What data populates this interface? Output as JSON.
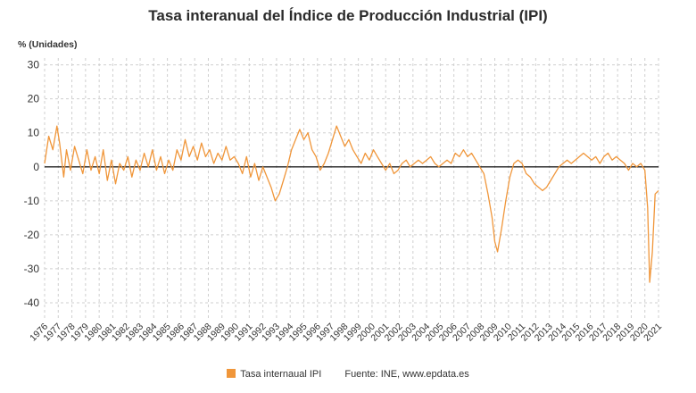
{
  "chart_data": {
    "type": "line",
    "title": "Tasa interanual del Índice de Producción Industrial (IPI)",
    "unit_label": "% (Unidades)",
    "source": "Fuente: INE, www.epdata.es",
    "x_ticks": [
      "1976",
      "1977",
      "1978",
      "1979",
      "1980",
      "1981",
      "1982",
      "1983",
      "1984",
      "1985",
      "1986",
      "1987",
      "1988",
      "1989",
      "1990",
      "1991",
      "1992",
      "1993",
      "1994",
      "1995",
      "1996",
      "1997",
      "1998",
      "1999",
      "2000",
      "2001",
      "2002",
      "2003",
      "2004",
      "2005",
      "2006",
      "2007",
      "2008",
      "2009",
      "2010",
      "2011",
      "2012",
      "2013",
      "2014",
      "2015",
      "2016",
      "2017",
      "2018",
      "2019",
      "2020",
      "2021"
    ],
    "y_ticks": [
      30,
      20,
      10,
      0,
      -10,
      -20,
      -30,
      -40
    ],
    "xlim": [
      1976,
      2021
    ],
    "ylim": [
      -45,
      32
    ],
    "grid": true,
    "legend_position": "bottom",
    "series": [
      {
        "name": "Tasa internaual IPI",
        "color": "#f0963a",
        "points": [
          [
            1976.0,
            1
          ],
          [
            1976.3,
            9
          ],
          [
            1976.6,
            5
          ],
          [
            1976.9,
            12
          ],
          [
            1977.1,
            7
          ],
          [
            1977.4,
            -3
          ],
          [
            1977.6,
            5
          ],
          [
            1977.9,
            -1
          ],
          [
            1978.2,
            6
          ],
          [
            1978.5,
            2
          ],
          [
            1978.8,
            -2
          ],
          [
            1979.1,
            5
          ],
          [
            1979.4,
            -1
          ],
          [
            1979.7,
            3
          ],
          [
            1980.0,
            -2
          ],
          [
            1980.3,
            5
          ],
          [
            1980.6,
            -4
          ],
          [
            1980.9,
            2
          ],
          [
            1981.2,
            -5
          ],
          [
            1981.5,
            1
          ],
          [
            1981.8,
            -1
          ],
          [
            1982.1,
            3
          ],
          [
            1982.4,
            -3
          ],
          [
            1982.7,
            2
          ],
          [
            1983.0,
            -1
          ],
          [
            1983.3,
            4
          ],
          [
            1983.6,
            0
          ],
          [
            1983.9,
            5
          ],
          [
            1984.2,
            -1
          ],
          [
            1984.5,
            3
          ],
          [
            1984.8,
            -2
          ],
          [
            1985.1,
            2
          ],
          [
            1985.4,
            -1
          ],
          [
            1985.7,
            5
          ],
          [
            1986.0,
            2
          ],
          [
            1986.3,
            8
          ],
          [
            1986.6,
            3
          ],
          [
            1986.9,
            6
          ],
          [
            1987.2,
            2
          ],
          [
            1987.5,
            7
          ],
          [
            1987.8,
            3
          ],
          [
            1988.1,
            5
          ],
          [
            1988.4,
            1
          ],
          [
            1988.7,
            4
          ],
          [
            1989.0,
            2
          ],
          [
            1989.3,
            6
          ],
          [
            1989.6,
            2
          ],
          [
            1989.9,
            3
          ],
          [
            1990.2,
            1
          ],
          [
            1990.5,
            -2
          ],
          [
            1990.8,
            3
          ],
          [
            1991.1,
            -3
          ],
          [
            1991.4,
            1
          ],
          [
            1991.7,
            -4
          ],
          [
            1992.0,
            0
          ],
          [
            1992.3,
            -3
          ],
          [
            1992.6,
            -6
          ],
          [
            1992.9,
            -10
          ],
          [
            1993.2,
            -8
          ],
          [
            1993.5,
            -4
          ],
          [
            1993.8,
            0
          ],
          [
            1994.1,
            5
          ],
          [
            1994.4,
            8
          ],
          [
            1994.7,
            11
          ],
          [
            1995.0,
            8
          ],
          [
            1995.3,
            10
          ],
          [
            1995.6,
            5
          ],
          [
            1995.9,
            3
          ],
          [
            1996.2,
            -1
          ],
          [
            1996.5,
            1
          ],
          [
            1996.8,
            4
          ],
          [
            1997.1,
            8
          ],
          [
            1997.4,
            12
          ],
          [
            1997.7,
            9
          ],
          [
            1998.0,
            6
          ],
          [
            1998.3,
            8
          ],
          [
            1998.6,
            5
          ],
          [
            1998.9,
            3
          ],
          [
            1999.2,
            1
          ],
          [
            1999.5,
            4
          ],
          [
            1999.8,
            2
          ],
          [
            2000.1,
            5
          ],
          [
            2000.4,
            3
          ],
          [
            2000.7,
            1
          ],
          [
            2001.0,
            -1
          ],
          [
            2001.3,
            1
          ],
          [
            2001.6,
            -2
          ],
          [
            2001.9,
            -1
          ],
          [
            2002.2,
            1
          ],
          [
            2002.5,
            2
          ],
          [
            2002.8,
            0
          ],
          [
            2003.1,
            1
          ],
          [
            2003.4,
            2
          ],
          [
            2003.7,
            1
          ],
          [
            2004.0,
            2
          ],
          [
            2004.3,
            3
          ],
          [
            2004.6,
            1
          ],
          [
            2004.9,
            0
          ],
          [
            2005.2,
            1
          ],
          [
            2005.5,
            2
          ],
          [
            2005.8,
            1
          ],
          [
            2006.1,
            4
          ],
          [
            2006.4,
            3
          ],
          [
            2006.7,
            5
          ],
          [
            2007.0,
            3
          ],
          [
            2007.3,
            4
          ],
          [
            2007.6,
            2
          ],
          [
            2007.9,
            0
          ],
          [
            2008.2,
            -2
          ],
          [
            2008.5,
            -8
          ],
          [
            2008.8,
            -15
          ],
          [
            2009.0,
            -22
          ],
          [
            2009.2,
            -25
          ],
          [
            2009.5,
            -18
          ],
          [
            2009.8,
            -10
          ],
          [
            2010.1,
            -3
          ],
          [
            2010.4,
            1
          ],
          [
            2010.7,
            2
          ],
          [
            2011.0,
            1
          ],
          [
            2011.3,
            -2
          ],
          [
            2011.6,
            -3
          ],
          [
            2011.9,
            -5
          ],
          [
            2012.2,
            -6
          ],
          [
            2012.5,
            -7
          ],
          [
            2012.8,
            -6
          ],
          [
            2013.1,
            -4
          ],
          [
            2013.4,
            -2
          ],
          [
            2013.7,
            0
          ],
          [
            2014.0,
            1
          ],
          [
            2014.3,
            2
          ],
          [
            2014.6,
            1
          ],
          [
            2014.9,
            2
          ],
          [
            2015.2,
            3
          ],
          [
            2015.5,
            4
          ],
          [
            2015.8,
            3
          ],
          [
            2016.1,
            2
          ],
          [
            2016.4,
            3
          ],
          [
            2016.7,
            1
          ],
          [
            2017.0,
            3
          ],
          [
            2017.3,
            4
          ],
          [
            2017.6,
            2
          ],
          [
            2017.9,
            3
          ],
          [
            2018.2,
            2
          ],
          [
            2018.5,
            1
          ],
          [
            2018.8,
            -1
          ],
          [
            2019.1,
            1
          ],
          [
            2019.4,
            0
          ],
          [
            2019.7,
            1
          ],
          [
            2020.0,
            -1
          ],
          [
            2020.2,
            -12
          ],
          [
            2020.35,
            -34
          ],
          [
            2020.55,
            -25
          ],
          [
            2020.75,
            -8
          ],
          [
            2021.0,
            -7
          ]
        ]
      }
    ]
  }
}
